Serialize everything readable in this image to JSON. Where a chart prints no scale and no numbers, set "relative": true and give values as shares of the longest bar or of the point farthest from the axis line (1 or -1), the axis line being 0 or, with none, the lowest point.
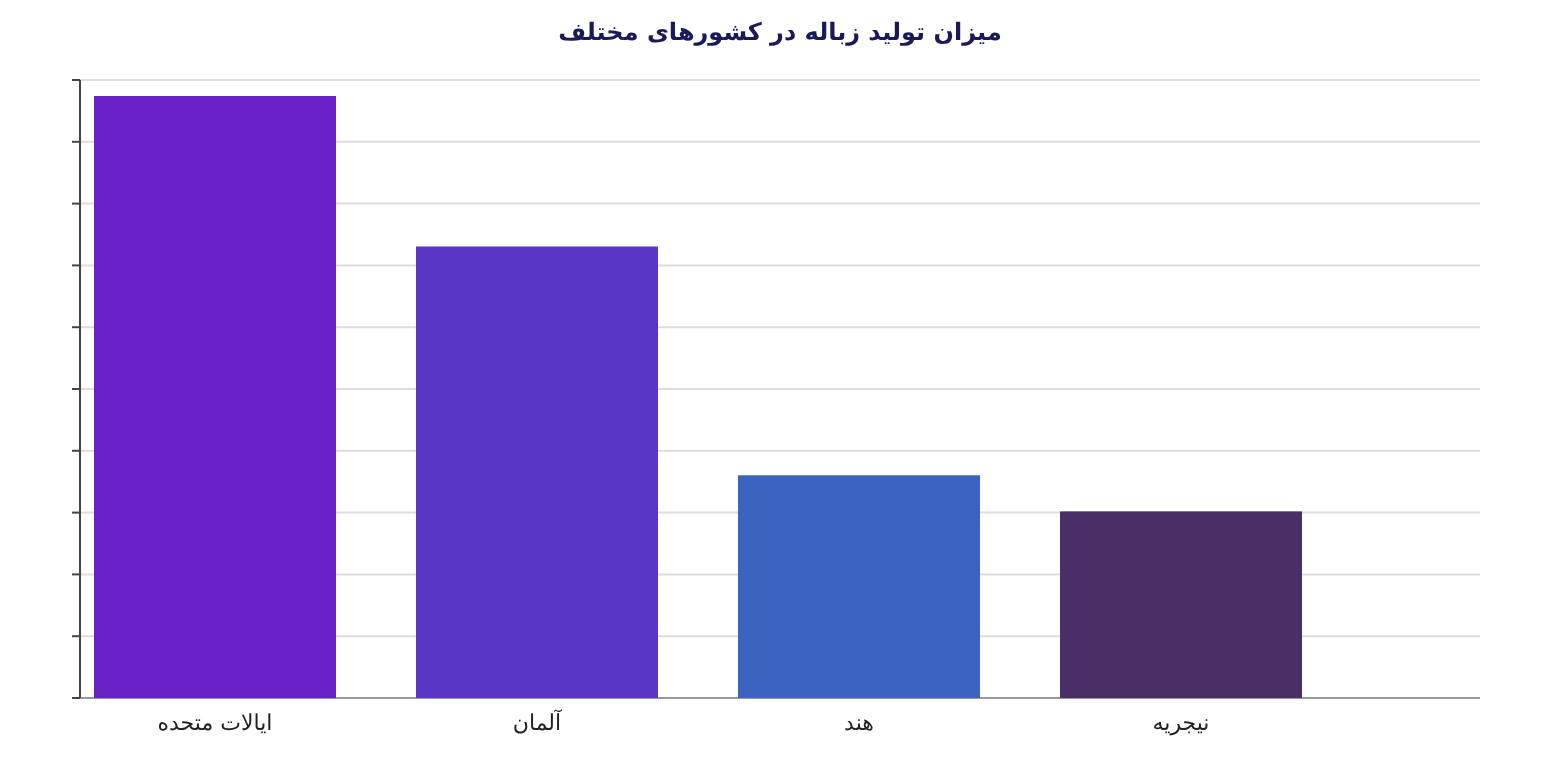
{
  "chart_data": {
    "type": "bar",
    "title": "میزان تولید زباله در کشورهای مختلف",
    "categories": [
      "ایالات متحده",
      "آلمان",
      "هند",
      "نیجریه"
    ],
    "values": [
      1,
      0.75,
      0.37,
      0.31
    ],
    "colors": [
      "#6a22c8",
      "#5a36c6",
      "#3b63c0",
      "#4a2e68"
    ],
    "relative": true,
    "grid": "y"
  }
}
